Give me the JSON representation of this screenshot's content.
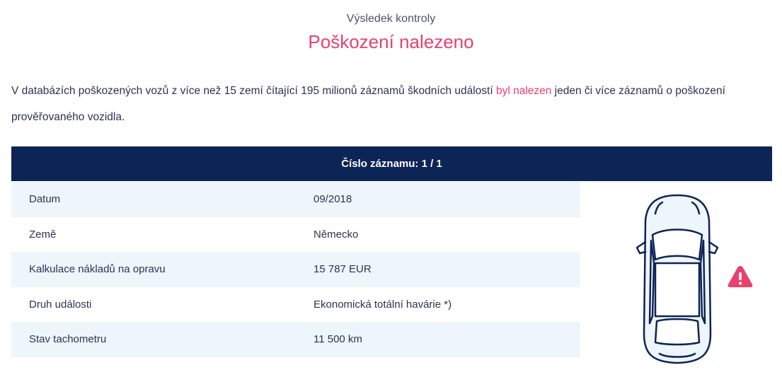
{
  "header": {
    "subtitle": "Výsledek kontroly",
    "title": "Poškození nalezeno"
  },
  "description": {
    "before": "V databázích poškozených vozů z více než 15 zemí čítající 195 milionů záznamů škodních událostí ",
    "highlight": "byl nalezen",
    "after": " jeden či více záznamů o poškození prověřovaného vozidla."
  },
  "record": {
    "header_label": "Číslo záznamu: 1 / 1",
    "rows": [
      {
        "label": "Datum",
        "value": "09/2018"
      },
      {
        "label": "Země",
        "value": "Německo"
      },
      {
        "label": "Kalkulace nákladů na opravu",
        "value": "15 787 EUR"
      },
      {
        "label": "Druh události",
        "value": "Ekonomická totální havárie *)"
      },
      {
        "label": "Stav tachometru",
        "value": "11 500 km"
      }
    ]
  },
  "icons": {
    "car": "car-top-view-icon",
    "warning": "warning-triangle-icon"
  },
  "colors": {
    "accent": "#e8416f",
    "header_bg": "#0d2456",
    "row_shade": "#eef5fb",
    "text": "#2b3550"
  }
}
